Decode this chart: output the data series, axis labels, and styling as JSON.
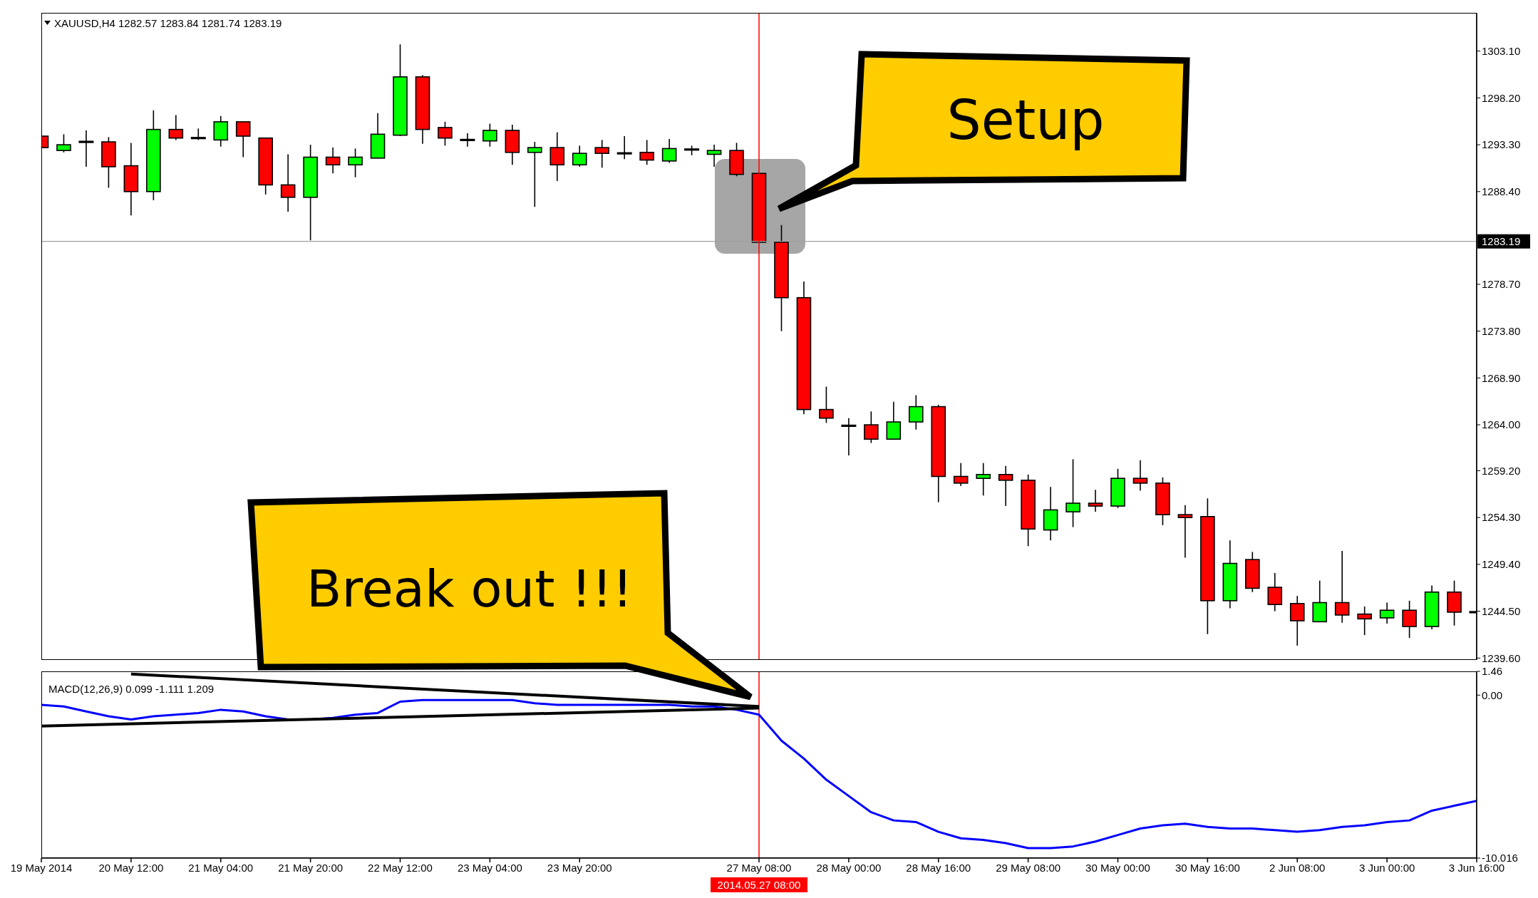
{
  "chart_data": [
    {
      "type": "candlestick",
      "title": "XAUUSD,H4 1282.57 1283.84 1281.74 1283.19",
      "categories": [
        "19 May 2014",
        null,
        null,
        null,
        "20 May 12:00",
        null,
        null,
        null,
        "21 May 04:00",
        null,
        null,
        null,
        "21 May 20:00",
        null,
        null,
        null,
        "22 May 12:00",
        null,
        null,
        null,
        "23 May 04:00",
        null,
        null,
        null,
        "23 May 20:00",
        null,
        null,
        null,
        null,
        null,
        null,
        null,
        "27 May 08:00",
        null,
        null,
        null,
        "28 May 00:00",
        null,
        null,
        null,
        "28 May 16:00",
        null,
        null,
        null,
        "29 May 08:00",
        null,
        null,
        null,
        "30 May 00:00",
        null,
        null,
        null,
        "30 May 16:00",
        null,
        null,
        null,
        "2 Jun 08:00",
        null,
        null,
        null,
        "3 Jun 00:00",
        null,
        null,
        null,
        "3 Jun 16:00"
      ],
      "ohlc": [
        [
          1294.2,
          1295.1,
          1292.5,
          1293.0
        ],
        [
          1292.7,
          1294.4,
          1292.5,
          1293.3
        ],
        [
          1293.6,
          1294.8,
          1291.0,
          1293.6
        ],
        [
          1293.6,
          1294.1,
          1288.8,
          1291.0
        ],
        [
          1291.1,
          1293.5,
          1285.9,
          1288.4
        ],
        [
          1288.4,
          1296.9,
          1287.5,
          1294.9
        ],
        [
          1294.9,
          1296.4,
          1293.8,
          1294.0
        ],
        [
          1294.0,
          1295.0,
          1293.8,
          1294.0
        ],
        [
          1293.8,
          1296.3,
          1293.1,
          1295.7
        ],
        [
          1295.7,
          1295.7,
          1292.0,
          1294.2
        ],
        [
          1294.0,
          1294.0,
          1288.1,
          1289.1
        ],
        [
          1289.1,
          1292.3,
          1286.3,
          1287.8
        ],
        [
          1287.8,
          1293.3,
          1283.3,
          1292.0
        ],
        [
          1292.0,
          1293.0,
          1290.3,
          1291.2
        ],
        [
          1291.2,
          1292.9,
          1289.9,
          1292.0
        ],
        [
          1291.9,
          1296.6,
          1291.9,
          1294.4
        ],
        [
          1294.3,
          1303.8,
          1294.2,
          1300.4
        ],
        [
          1300.4,
          1300.6,
          1293.4,
          1294.9
        ],
        [
          1295.1,
          1295.7,
          1293.2,
          1294.0
        ],
        [
          1293.8,
          1294.5,
          1293.1,
          1293.8
        ],
        [
          1293.7,
          1295.5,
          1293.1,
          1294.8
        ],
        [
          1294.8,
          1295.4,
          1291.2,
          1292.5
        ],
        [
          1292.5,
          1293.6,
          1286.8,
          1293.0
        ],
        [
          1293.0,
          1294.6,
          1289.5,
          1291.2
        ],
        [
          1291.2,
          1293.2,
          1291.0,
          1292.4
        ],
        [
          1293.0,
          1293.8,
          1290.9,
          1292.4
        ],
        [
          1292.4,
          1294.2,
          1291.8,
          1292.4
        ],
        [
          1292.5,
          1293.8,
          1291.2,
          1291.7
        ],
        [
          1291.6,
          1293.9,
          1291.4,
          1292.9
        ],
        [
          1292.8,
          1293.2,
          1292.2,
          1292.8
        ],
        [
          1292.3,
          1293.3,
          1291.0,
          1292.7
        ],
        [
          1292.7,
          1293.5,
          1290.0,
          1290.2
        ],
        [
          1290.3,
          1290.4,
          1283.1,
          1283.1
        ],
        [
          1283.1,
          1284.9,
          1273.8,
          1277.3
        ],
        [
          1277.3,
          1279.0,
          1265.1,
          1265.6
        ],
        [
          1265.6,
          1268.0,
          1264.2,
          1264.7
        ],
        [
          1263.9,
          1264.7,
          1260.8,
          1263.9
        ],
        [
          1264.0,
          1265.4,
          1262.1,
          1262.5
        ],
        [
          1262.5,
          1266.4,
          1262.5,
          1264.3
        ],
        [
          1264.3,
          1267.1,
          1263.5,
          1265.9
        ],
        [
          1265.9,
          1266.1,
          1255.9,
          1258.6
        ],
        [
          1258.6,
          1260.0,
          1257.6,
          1257.9
        ],
        [
          1258.4,
          1260.0,
          1256.6,
          1258.8
        ],
        [
          1258.8,
          1259.7,
          1255.5,
          1258.2
        ],
        [
          1258.2,
          1258.8,
          1251.3,
          1253.1
        ],
        [
          1253.0,
          1257.5,
          1251.9,
          1255.1
        ],
        [
          1254.9,
          1260.4,
          1253.3,
          1255.8
        ],
        [
          1255.8,
          1257.2,
          1254.9,
          1255.5
        ],
        [
          1255.5,
          1259.4,
          1255.3,
          1258.4
        ],
        [
          1258.4,
          1260.3,
          1257.1,
          1257.9
        ],
        [
          1257.9,
          1258.5,
          1253.5,
          1254.6
        ],
        [
          1254.6,
          1255.6,
          1250.1,
          1254.3
        ],
        [
          1254.4,
          1256.3,
          1242.1,
          1245.6
        ],
        [
          1245.6,
          1251.9,
          1244.8,
          1249.5
        ],
        [
          1249.9,
          1250.7,
          1246.5,
          1246.9
        ],
        [
          1247.0,
          1248.5,
          1244.5,
          1245.2
        ],
        [
          1245.3,
          1246.1,
          1240.9,
          1243.5
        ],
        [
          1243.4,
          1247.7,
          1243.4,
          1245.4
        ],
        [
          1245.4,
          1250.8,
          1243.3,
          1244.1
        ],
        [
          1244.2,
          1245.0,
          1242.0,
          1243.7
        ],
        [
          1243.8,
          1245.4,
          1243.2,
          1244.6
        ],
        [
          1244.6,
          1245.6,
          1241.7,
          1242.9
        ],
        [
          1242.9,
          1247.2,
          1242.6,
          1246.5
        ],
        [
          1246.5,
          1247.7,
          1243.0,
          1244.4
        ],
        [
          1244.4,
          1245.9,
          1240.5,
          1244.4
        ]
      ],
      "colors": [
        "#ff0000",
        "#00ff00",
        "#000000",
        "#ff0000",
        "#ff0000",
        "#00ff00",
        "#ff0000",
        "#000000",
        "#00ff00",
        "#ff0000",
        "#ff0000",
        "#ff0000",
        "#00ff00",
        "#ff0000",
        "#00ff00",
        "#00ff00",
        "#00ff00",
        "#ff0000",
        "#ff0000",
        "#000000",
        "#00ff00",
        "#ff0000",
        "#00ff00",
        "#ff0000",
        "#00ff00",
        "#ff0000",
        "#000000",
        "#ff0000",
        "#00ff00",
        "#000000",
        "#00ff00",
        "#ff0000",
        "#ff0000",
        "#ff0000",
        "#ff0000",
        "#ff0000",
        "#000000",
        "#ff0000",
        "#00ff00",
        "#00ff00",
        "#ff0000",
        "#ff0000",
        "#00ff00",
        "#ff0000",
        "#ff0000",
        "#00ff00",
        "#00ff00",
        "#ff0000",
        "#00ff00",
        "#ff0000",
        "#ff0000",
        "#ff0000",
        "#ff0000",
        "#00ff00",
        "#ff0000",
        "#ff0000",
        "#ff0000",
        "#00ff00",
        "#ff0000",
        "#ff0000",
        "#00ff00",
        "#ff0000",
        "#00ff00",
        "#ff0000",
        "#000000"
      ],
      "ylim": [
        1239.4,
        1307.1
      ],
      "yticks": [
        {
          "value": 1239.6,
          "label": "1239.60"
        },
        {
          "value": 1244.5,
          "label": "1244.50"
        },
        {
          "value": 1249.4,
          "label": "1249.40"
        },
        {
          "value": 1254.3,
          "label": "1254.30"
        },
        {
          "value": 1259.2,
          "label": "1259.20"
        },
        {
          "value": 1264,
          "label": "1264.00"
        },
        {
          "value": 1268.9,
          "label": "1268.90"
        },
        {
          "value": 1273.8,
          "label": "1273.80"
        },
        {
          "value": 1278.7,
          "label": "1278.70"
        },
        {
          "value": 1288.4,
          "label": "1288.40"
        },
        {
          "value": 1293.3,
          "label": "1293.30"
        },
        {
          "value": 1298.2,
          "label": "1298.20"
        },
        {
          "value": 1303.1,
          "label": "1303.10"
        }
      ],
      "tick_labels": "y",
      "ref_lines": [
        {
          "axis": "y",
          "value": 1283.19,
          "label": "1283.19",
          "color": "#a0a0a0"
        },
        {
          "axis": "x",
          "value": "27 May 08:00",
          "color": "#ff0000"
        }
      ],
      "annotations": [
        "Setup",
        "Break out !!!"
      ]
    },
    {
      "type": "line",
      "title": "MACD(12,26,9) 0.099 -1.111 1.209",
      "categories": [
        "19 May 2014",
        null,
        null,
        null,
        "20 May 12:00",
        null,
        null,
        null,
        "21 May 04:00",
        null,
        null,
        null,
        "21 May 20:00",
        null,
        null,
        null,
        "22 May 12:00",
        null,
        null,
        null,
        "23 May 04:00",
        null,
        null,
        null,
        "23 May 20:00",
        null,
        null,
        null,
        null,
        null,
        null,
        null,
        "27 May 08:00",
        null,
        null,
        null,
        "28 May 00:00",
        null,
        null,
        null,
        "28 May 16:00",
        null,
        null,
        null,
        "29 May 08:00",
        null,
        null,
        null,
        "30 May 00:00",
        null,
        null,
        null,
        "30 May 16:00",
        null,
        null,
        null,
        "2 Jun 08:00",
        null,
        null,
        null,
        "3 Jun 00:00",
        null,
        null,
        null,
        "3 Jun 16:00"
      ],
      "series": [
        {
          "color": "#0000ff",
          "values": [
            -0.6,
            -0.7,
            -1.0,
            -1.3,
            -1.5,
            -1.3,
            -1.2,
            -1.1,
            -0.9,
            -1.0,
            -1.3,
            -1.5,
            -1.5,
            -1.4,
            -1.2,
            -1.1,
            -0.4,
            -0.3,
            -0.3,
            -0.3,
            -0.3,
            -0.3,
            -0.5,
            -0.6,
            -0.6,
            -0.6,
            -0.6,
            -0.6,
            -0.6,
            -0.7,
            -0.7,
            -0.9,
            -1.2,
            -2.8,
            -3.9,
            -5.2,
            -6.2,
            -7.2,
            -7.7,
            -7.8,
            -8.4,
            -8.8,
            -8.9,
            -9.1,
            -9.4,
            -9.4,
            -9.3,
            -9.0,
            -8.6,
            -8.2,
            -8.0,
            -7.9,
            -8.1,
            -8.2,
            -8.2,
            -8.3,
            -8.4,
            -8.3,
            -8.1,
            -8.0,
            -7.8,
            -7.7,
            -7.1,
            -6.8,
            -6.5
          ]
        },
        {
          "type": "line",
          "color": "#000000",
          "x": [
            "20 May 12:00",
            "27 May 08:00"
          ],
          "values": [
            1.3,
            -0.7
          ]
        },
        {
          "type": "line",
          "color": "#000000",
          "x": [
            "19 May 2014",
            "27 May 08:00"
          ],
          "values": [
            -1.9,
            -0.8
          ]
        }
      ],
      "ylim": [
        -10.016,
        1.46
      ],
      "yticks": [
        1.46,
        {
          "value": 0,
          "label": "0.00"
        },
        -10.016
      ],
      "ref_lines": [
        {
          "axis": "x",
          "value": "27 May 08:00",
          "label": "2014.05.27 08:00",
          "color": "#ff0000"
        }
      ]
    }
  ]
}
